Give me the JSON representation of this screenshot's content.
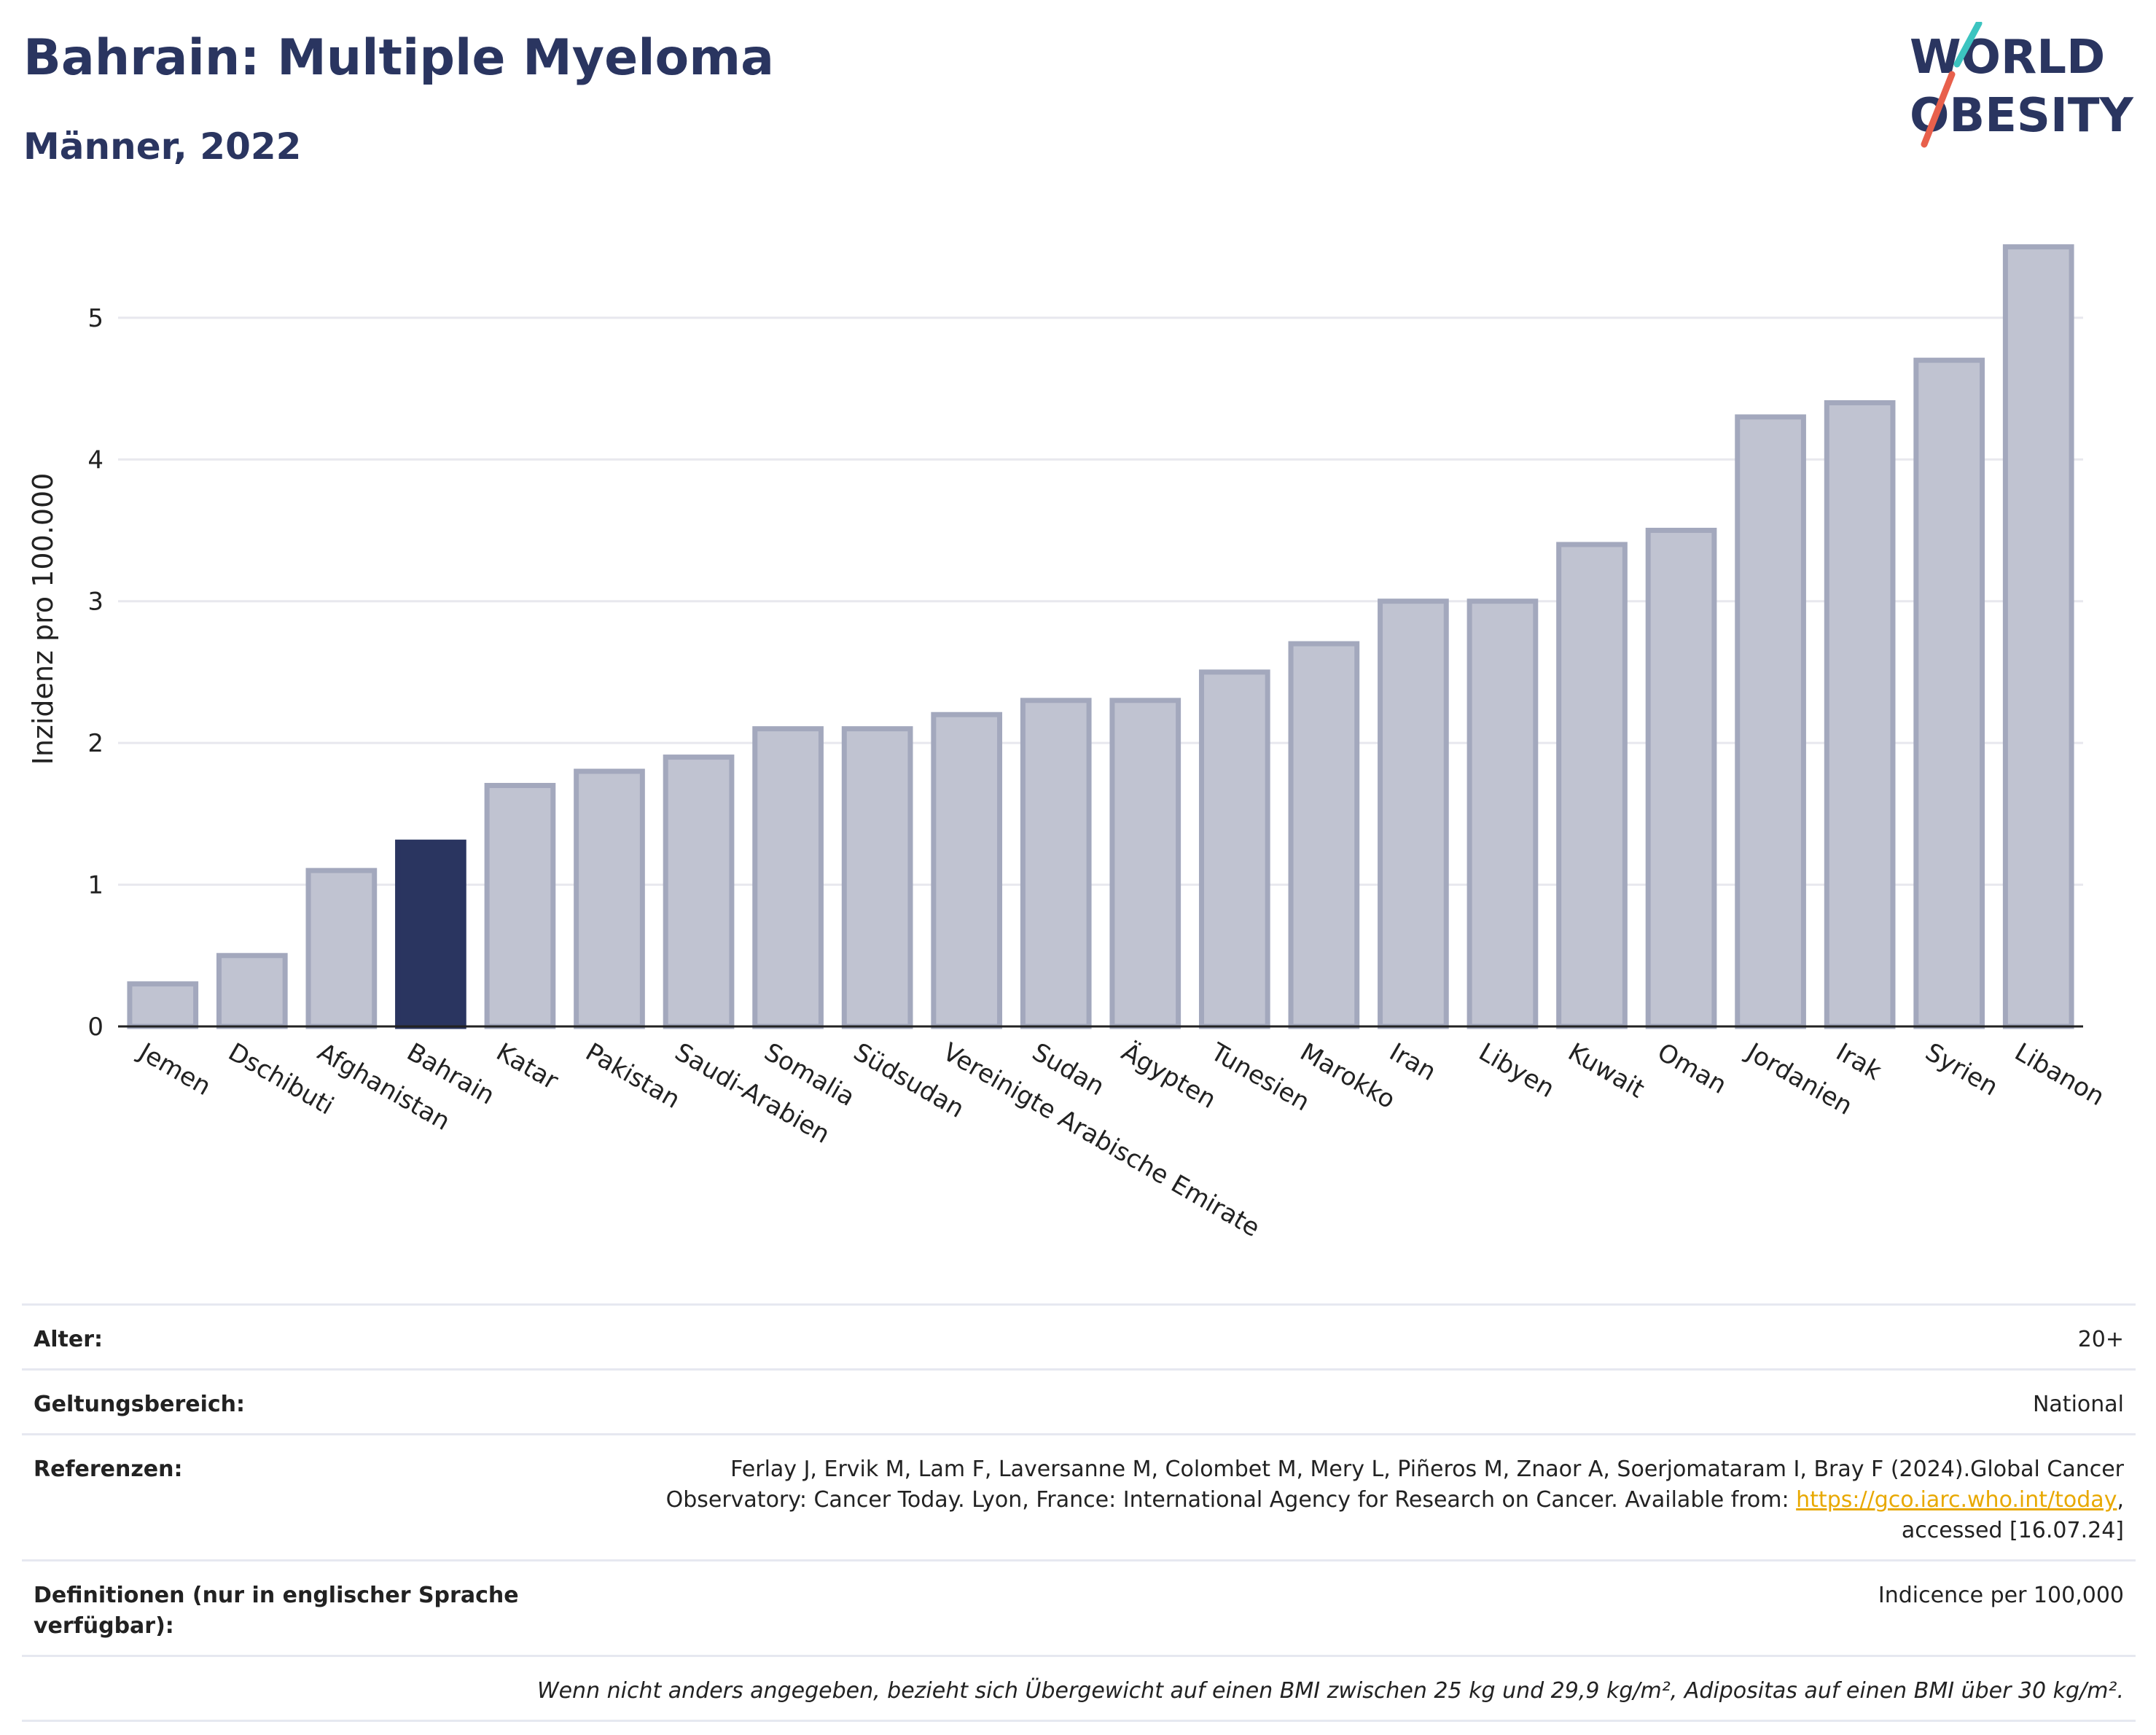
{
  "header": {
    "title": "Bahrain: Multiple Myeloma",
    "subtitle": "Männer, 2022",
    "logo_line1": "WORLD",
    "logo_line2": "OBESITY"
  },
  "colors": {
    "bar": "#c0c3d1",
    "bar_border": "#a3a8bd",
    "highlight": "#2a3560",
    "grid": "#e8e8ee",
    "axis": "#222222",
    "logo_teal": "#3cc4c0",
    "logo_coral": "#e8604c",
    "link": "#e8a800"
  },
  "chart_data": {
    "type": "bar",
    "categories": [
      "Jemen",
      "Dschibuti",
      "Afghanistan",
      "Bahrain",
      "Katar",
      "Pakistan",
      "Saudi-Arabien",
      "Somalia",
      "Südsudan",
      "Vereinigte Arabische Emirate",
      "Sudan",
      "Ägypten",
      "Tunesien",
      "Marokko",
      "Iran",
      "Libyen",
      "Kuwait",
      "Oman",
      "Jordanien",
      "Irak",
      "Syrien",
      "Libanon"
    ],
    "values": [
      0.3,
      0.5,
      1.1,
      1.3,
      1.7,
      1.8,
      1.9,
      2.1,
      2.1,
      2.2,
      2.3,
      2.3,
      2.5,
      2.7,
      3.0,
      3.0,
      3.4,
      3.5,
      4.3,
      4.4,
      4.7,
      5.5
    ],
    "highlight": "Bahrain",
    "title": "Bahrain: Multiple Myeloma",
    "subtitle": "Männer, 2022",
    "xlabel": "",
    "ylabel": "Inzidenz pro 100.000",
    "yticks": [
      0,
      1,
      2,
      3,
      4,
      5
    ],
    "ylim": [
      0,
      5.75
    ],
    "grid": true
  },
  "info": {
    "age_label": "Alter:",
    "age_value": "20+",
    "scope_label": "Geltungsbereich:",
    "scope_value": "National",
    "ref_label": "Referenzen:",
    "ref_text_1": "Ferlay J, Ervik M, Lam F, Laversanne M, Colombet M, Mery L, Piñeros M, Znaor A, Soerjomataram I, Bray F (2024).Global Cancer Observatory: Cancer Today. Lyon, France: International Agency for Research on Cancer. Available from: ",
    "ref_link": "https://gco.iarc.who.int/today",
    "ref_text_2": ", accessed [16.07.24]",
    "def_label": "Definitionen (nur in englischer Sprache verfügbar):",
    "def_value": "Indicence per 100,000",
    "note": "Wenn nicht anders angegeben, bezieht sich Übergewicht auf einen BMI zwischen 25 kg und 29,9 kg/m², Adipositas auf einen BMI über 30 kg/m²."
  }
}
